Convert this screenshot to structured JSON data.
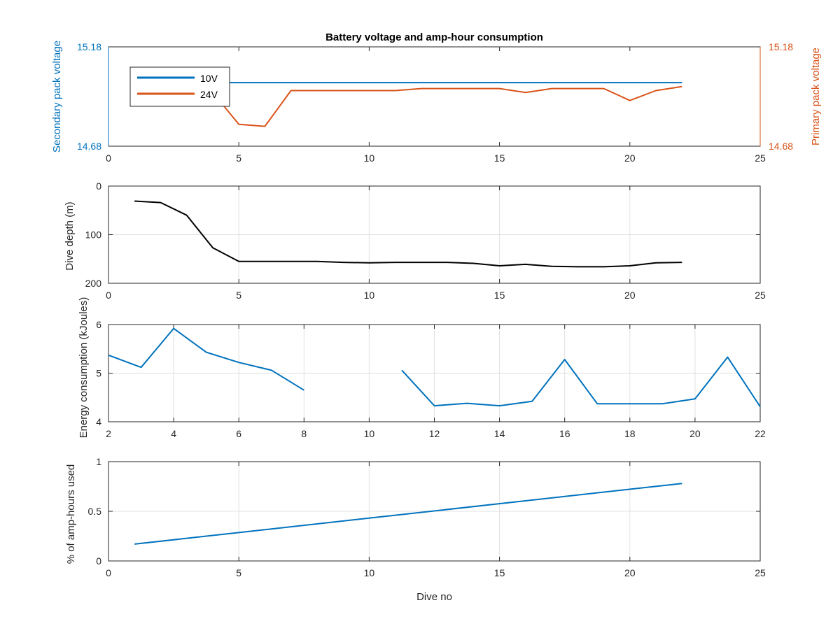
{
  "title": "Battery voltage and amp-hour consumption",
  "colors": {
    "v10": "#0072bd",
    "v24": "#d95319",
    "depth": "#000000",
    "energy": "#0072bd",
    "amphours": "#0072bd",
    "axis": "#262626",
    "grid": "#e0e0e0"
  },
  "chart_data": [
    {
      "type": "line",
      "title": "Battery voltage and amp-hour consumption",
      "xlabel": "",
      "ylabel_left": "Secondary pack voltage",
      "ylabel_right": "Primary pack voltage",
      "xlim": [
        0,
        25
      ],
      "ylim": [
        14.68,
        15.18
      ],
      "x_ticks": [
        0,
        5,
        10,
        15,
        20,
        25
      ],
      "y_ticks_left": [
        "14.68",
        "15.18"
      ],
      "y_ticks_right": [
        "14.68",
        "15.18"
      ],
      "grid": false,
      "legend": {
        "position": "top-left",
        "entries": [
          "10V",
          "24V"
        ]
      },
      "series": [
        {
          "name": "10V",
          "x": [
            4,
            22
          ],
          "y": [
            15.0,
            15.0
          ]
        },
        {
          "name": "24V",
          "x": [
            4,
            5,
            6,
            7,
            8,
            9,
            10,
            11,
            12,
            13,
            14,
            15,
            16,
            17,
            18,
            19,
            20,
            21,
            22
          ],
          "y": [
            14.95,
            14.79,
            14.78,
            14.96,
            14.96,
            14.96,
            14.96,
            14.96,
            14.97,
            14.97,
            14.97,
            14.97,
            14.95,
            14.97,
            14.97,
            14.97,
            14.91,
            14.96,
            14.98
          ]
        }
      ]
    },
    {
      "type": "line",
      "ylabel": "Dive depth (m)",
      "xlim": [
        0,
        25
      ],
      "ylim": [
        0,
        200
      ],
      "y_reversed": true,
      "x_ticks": [
        0,
        5,
        10,
        15,
        20,
        25
      ],
      "y_ticks": [
        "0",
        "100",
        "200"
      ],
      "grid": true,
      "series": [
        {
          "x": [
            1,
            2,
            3,
            4,
            5,
            6,
            7,
            8,
            9,
            10,
            11,
            12,
            13,
            14,
            15,
            16,
            17,
            18,
            19,
            20,
            21,
            22
          ],
          "y": [
            31,
            34,
            60,
            127,
            155,
            155,
            155,
            155,
            157,
            158,
            157,
            157,
            157,
            159,
            164,
            161,
            165,
            166,
            166,
            164,
            158,
            157
          ]
        }
      ]
    },
    {
      "type": "line",
      "ylabel": "Energy consumption (kJoules)",
      "xlim": [
        2,
        22
      ],
      "ylim": [
        4,
        6
      ],
      "x_ticks": [
        2,
        4,
        6,
        8,
        10,
        12,
        14,
        16,
        18,
        20,
        22
      ],
      "y_ticks": [
        "4",
        "5",
        "6"
      ],
      "grid": true,
      "series": [
        {
          "segments": [
            {
              "x": [
                2,
                3,
                4,
                5,
                6,
                7,
                8
              ],
              "y": [
                5.37,
                5.12,
                5.92,
                5.43,
                5.22,
                5.06,
                4.65
              ]
            },
            {
              "x": [
                11,
                12,
                13,
                14,
                15,
                16,
                17,
                18,
                19,
                20,
                21,
                22
              ],
              "y": [
                5.06,
                4.33,
                4.38,
                4.33,
                4.42,
                5.28,
                4.37,
                4.37,
                4.37,
                4.47,
                5.33,
                4.31
              ]
            }
          ]
        }
      ]
    },
    {
      "type": "line",
      "ylabel": "% of amp-hours used",
      "xlabel": "Dive no",
      "xlim": [
        0,
        25
      ],
      "ylim": [
        0,
        1
      ],
      "x_ticks": [
        0,
        5,
        10,
        15,
        20,
        25
      ],
      "y_ticks": [
        "0",
        "0.5",
        "1"
      ],
      "grid": true,
      "series": [
        {
          "x": [
            1,
            22
          ],
          "y": [
            0.17,
            0.78
          ]
        }
      ]
    }
  ]
}
